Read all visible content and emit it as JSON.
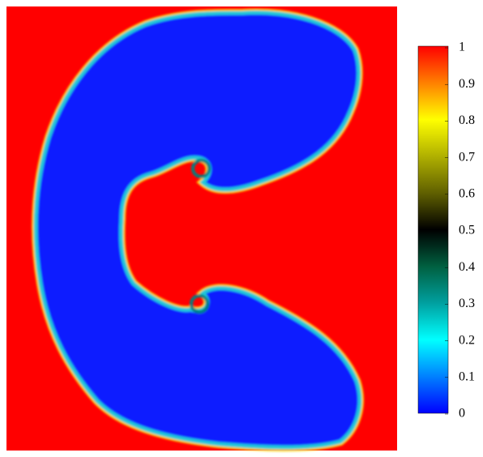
{
  "chart_data": {
    "type": "field",
    "colorbar": {
      "lim": [
        0,
        1
      ],
      "ticks": [
        0,
        0.1,
        0.2,
        0.3,
        0.4,
        0.5,
        0.6,
        0.7,
        0.8,
        0.9,
        1
      ],
      "colormap": [
        "#0000ff",
        "#0080ff",
        "#00ffff",
        "#00a0a0",
        "#006040",
        "#000000",
        "#606000",
        "#b0b000",
        "#ffff00",
        "#ff8000",
        "#ff0000"
      ]
    }
  }
}
